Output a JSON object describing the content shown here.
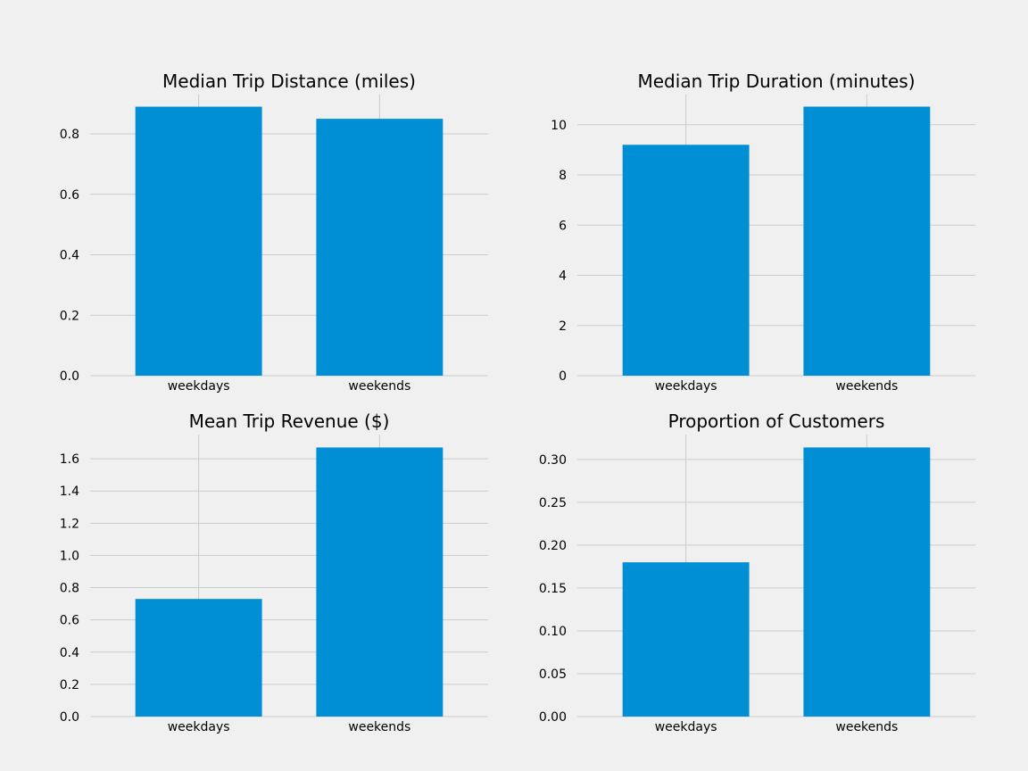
{
  "colors": {
    "background": "#f0f0f0",
    "bar": "#008fd5",
    "grid": "#cbcbcb"
  },
  "chart_data": [
    {
      "type": "bar",
      "title": "Median Trip Distance (miles)",
      "categories": [
        "weekdays",
        "weekends"
      ],
      "values": [
        0.89,
        0.85
      ],
      "ylim": [
        0,
        0.93
      ],
      "yticks": [
        0.0,
        0.2,
        0.4,
        0.6,
        0.8
      ],
      "ytick_labels": [
        "0.0",
        "0.2",
        "0.4",
        "0.6",
        "0.8"
      ],
      "grid": true
    },
    {
      "type": "bar",
      "title": "Median Trip Duration (minutes)",
      "categories": [
        "weekdays",
        "weekends"
      ],
      "values": [
        9.2,
        10.72
      ],
      "ylim": [
        0,
        11.2
      ],
      "yticks": [
        0,
        2,
        4,
        6,
        8,
        10
      ],
      "ytick_labels": [
        "0",
        "2",
        "4",
        "6",
        "8",
        "10"
      ],
      "grid": true
    },
    {
      "type": "bar",
      "title": "Mean Trip Revenue ($)",
      "categories": [
        "weekdays",
        "weekends"
      ],
      "values": [
        0.73,
        1.67
      ],
      "ylim": [
        0,
        1.75
      ],
      "yticks": [
        0.0,
        0.2,
        0.4,
        0.6,
        0.8,
        1.0,
        1.2,
        1.4,
        1.6
      ],
      "ytick_labels": [
        "0.0",
        "0.2",
        "0.4",
        "0.6",
        "0.8",
        "1.0",
        "1.2",
        "1.4",
        "1.6"
      ],
      "grid": true
    },
    {
      "type": "bar",
      "title": "Proportion of Customers",
      "categories": [
        "weekdays",
        "weekends"
      ],
      "values": [
        0.18,
        0.314
      ],
      "ylim": [
        0,
        0.329
      ],
      "yticks": [
        0.0,
        0.05,
        0.1,
        0.15,
        0.2,
        0.25,
        0.3
      ],
      "ytick_labels": [
        "0.00",
        "0.05",
        "0.10",
        "0.15",
        "0.20",
        "0.25",
        "0.30"
      ],
      "grid": true
    }
  ]
}
